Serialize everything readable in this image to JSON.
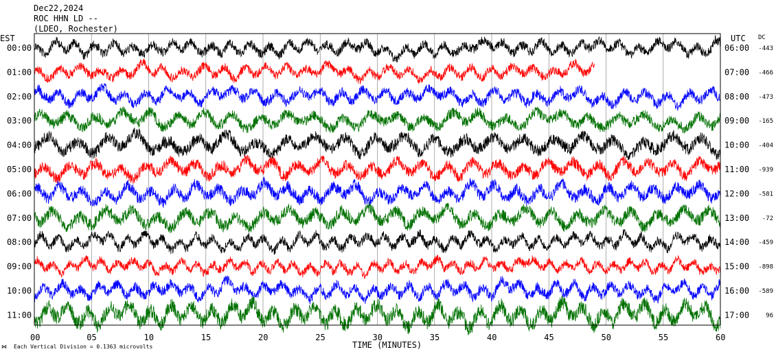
{
  "header": {
    "date": "Dec22,2024",
    "station": "ROC HHN LD --",
    "network": "(LDEO, Rochester)"
  },
  "left_axis_label": "EST",
  "right_axis_label": "UTC",
  "dc_header": "DC",
  "footer": {
    "xaxis_title": "TIME (MINUTES)",
    "note": "Each Vertical Division = 0.1363 microvolts"
  },
  "chart_data": {
    "type": "line",
    "subtype": "helicorder",
    "xlabel": "TIME (MINUTES)",
    "xlim": [
      0,
      60
    ],
    "xticks": [
      "00",
      "05",
      "10",
      "15",
      "20",
      "25",
      "30",
      "35",
      "40",
      "45",
      "50",
      "55",
      "60"
    ],
    "trace_colors": [
      "#000000",
      "#ff0000",
      "#0000ff",
      "#007000"
    ],
    "rows": [
      {
        "est": "00:00",
        "utc": "06:00",
        "dc": "-443",
        "color": "#000000",
        "amplitude": 1.0,
        "period_min": 1.7,
        "end_min": 60
      },
      {
        "est": "01:00",
        "utc": "07:00",
        "dc": "-466",
        "color": "#ff0000",
        "amplitude": 0.95,
        "period_min": 1.8,
        "end_min": 49
      },
      {
        "est": "02:00",
        "utc": "08:00",
        "dc": "-473",
        "color": "#0000ff",
        "amplitude": 1.05,
        "period_min": 1.9,
        "end_min": 60
      },
      {
        "est": "03:00",
        "utc": "09:00",
        "dc": "-165",
        "color": "#007000",
        "amplitude": 1.15,
        "period_min": 2.4,
        "end_min": 60
      },
      {
        "est": "04:00",
        "utc": "10:00",
        "dc": "-404",
        "color": "#000000",
        "amplitude": 1.3,
        "period_min": 2.6,
        "end_min": 60
      },
      {
        "est": "05:00",
        "utc": "11:00",
        "dc": "-939",
        "color": "#ff0000",
        "amplitude": 1.2,
        "period_min": 2.2,
        "end_min": 60
      },
      {
        "est": "06:00",
        "utc": "12:00",
        "dc": "-581",
        "color": "#0000ff",
        "amplitude": 1.25,
        "period_min": 2.0,
        "end_min": 60
      },
      {
        "est": "07:00",
        "utc": "13:00",
        "dc": "-72",
        "color": "#007000",
        "amplitude": 1.3,
        "period_min": 2.3,
        "end_min": 60
      },
      {
        "est": "08:00",
        "utc": "14:00",
        "dc": "-459",
        "color": "#000000",
        "amplitude": 1.0,
        "period_min": 1.5,
        "end_min": 60
      },
      {
        "est": "09:00",
        "utc": "15:00",
        "dc": "-898",
        "color": "#ff0000",
        "amplitude": 0.9,
        "period_min": 1.4,
        "end_min": 60
      },
      {
        "est": "10:00",
        "utc": "16:00",
        "dc": "-589",
        "color": "#0000ff",
        "amplitude": 1.1,
        "period_min": 1.6,
        "end_min": 60
      },
      {
        "est": "11:00",
        "utc": "17:00",
        "dc": "96",
        "color": "#007000",
        "amplitude": 1.6,
        "period_min": 1.8,
        "end_min": 60
      }
    ]
  }
}
